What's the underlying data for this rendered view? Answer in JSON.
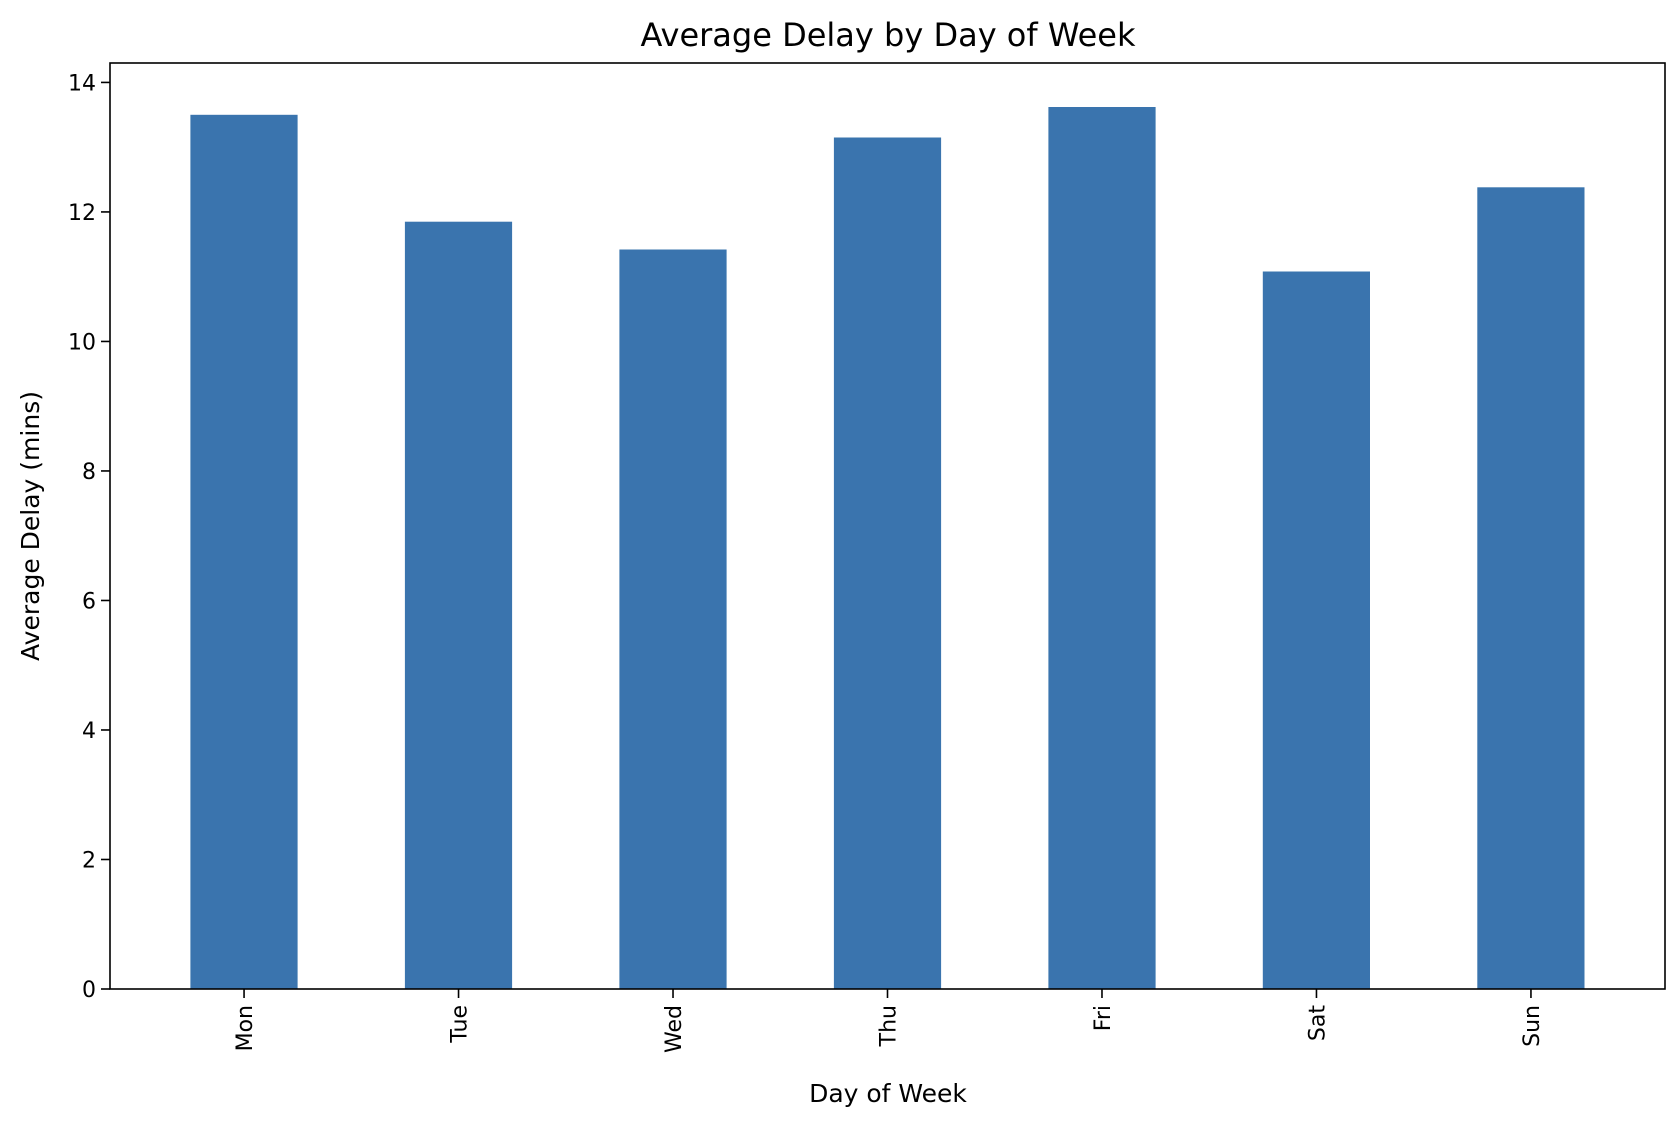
{
  "chart_data": {
    "type": "bar",
    "title": "Average Delay by Day of Week",
    "xlabel": "Day of Week",
    "ylabel": "Average Delay (mins)",
    "categories": [
      "Mon",
      "Tue",
      "Wed",
      "Thu",
      "Fri",
      "Sat",
      "Sun"
    ],
    "values": [
      13.5,
      11.85,
      11.42,
      13.15,
      13.62,
      11.08,
      12.38
    ],
    "ylim": [
      0,
      14.3
    ],
    "yticks": [
      0,
      2,
      4,
      6,
      8,
      10,
      12,
      14
    ],
    "grid": false,
    "legend": "none",
    "bar_color": "#3a74ae"
  }
}
